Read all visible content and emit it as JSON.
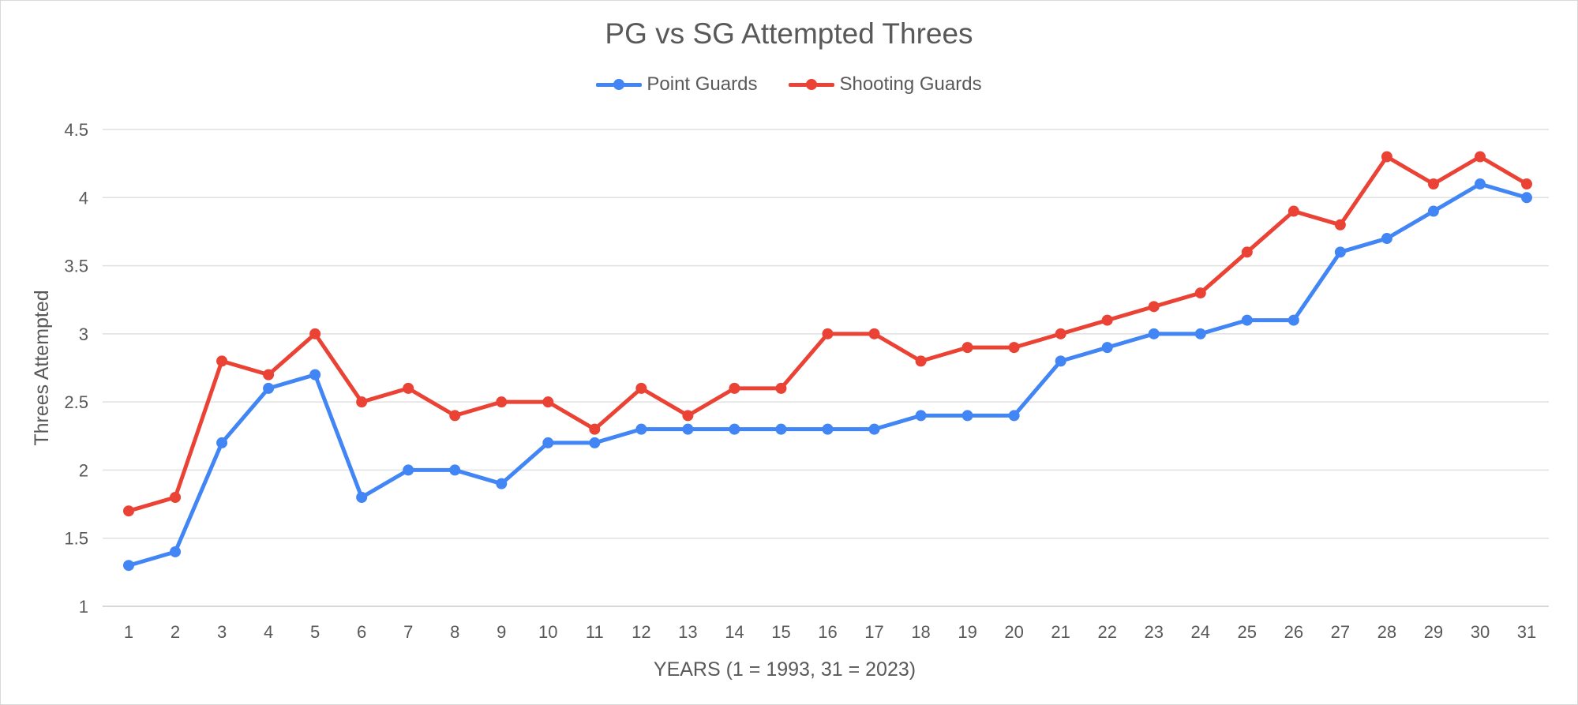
{
  "chart_data": {
    "type": "line",
    "title": "PG vs SG Attempted Threes",
    "xlabel": "YEARS (1 = 1993, 31 = 2023)",
    "ylabel": "Threes Attempted",
    "ylim": [
      1,
      4.5
    ],
    "yticks": [
      "1",
      "1.5",
      "2",
      "2.5",
      "3",
      "3.5",
      "4",
      "4.5"
    ],
    "grid": true,
    "legend_position": "top",
    "categories": [
      "1",
      "2",
      "3",
      "4",
      "5",
      "6",
      "7",
      "8",
      "9",
      "10",
      "11",
      "12",
      "13",
      "14",
      "15",
      "16",
      "17",
      "18",
      "19",
      "20",
      "21",
      "22",
      "23",
      "24",
      "25",
      "26",
      "27",
      "28",
      "29",
      "30",
      "31"
    ],
    "series": [
      {
        "name": "Point Guards",
        "color": "#4285f4",
        "values": [
          1.3,
          1.4,
          2.2,
          2.6,
          2.7,
          1.8,
          2.0,
          2.0,
          1.9,
          2.2,
          2.2,
          2.3,
          2.3,
          2.3,
          2.3,
          2.3,
          2.3,
          2.4,
          2.4,
          2.4,
          2.8,
          2.9,
          3.0,
          3.0,
          3.1,
          3.1,
          3.6,
          3.7,
          3.9,
          4.1,
          4.0
        ]
      },
      {
        "name": "Shooting Guards",
        "color": "#ea4335",
        "values": [
          1.7,
          1.8,
          2.8,
          2.7,
          3.0,
          2.5,
          2.6,
          2.4,
          2.5,
          2.5,
          2.3,
          2.6,
          2.4,
          2.6,
          2.6,
          3.0,
          3.0,
          2.8,
          2.9,
          2.9,
          3.0,
          3.1,
          3.2,
          3.3,
          3.6,
          3.9,
          3.8,
          4.3,
          4.1,
          4.3,
          4.1
        ]
      }
    ]
  }
}
